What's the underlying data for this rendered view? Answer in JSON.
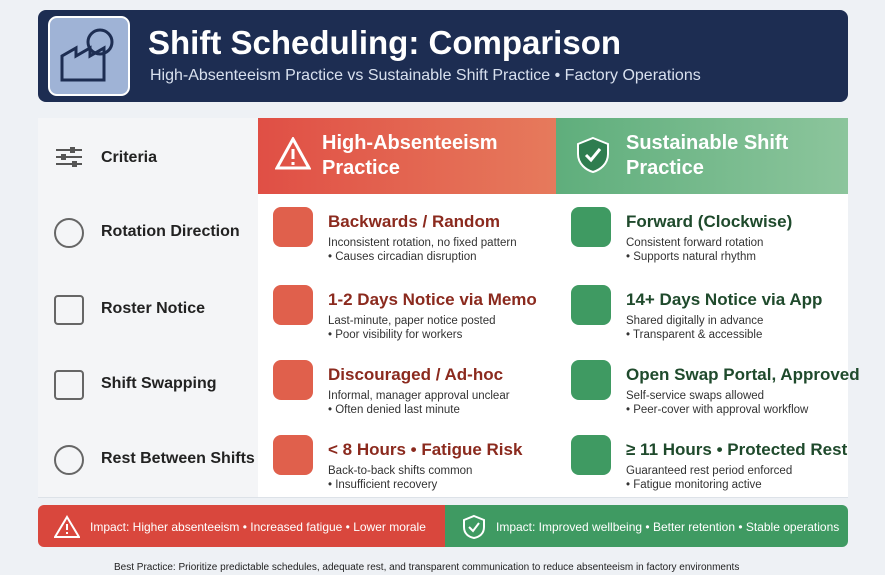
{
  "header": {
    "title": "Shift Scheduling: Comparison",
    "subtitle": "High-Absenteeism Practice vs Sustainable Shift Practice • Factory Operations"
  },
  "table": {
    "columns": [
      "Criteria",
      "High-Absenteeism Practice",
      "Sustainable Shift Practice"
    ],
    "rows": [
      {
        "criterion": "Rotation Direction",
        "bad": {
          "title": "Backwards / Random",
          "lines": [
            "Inconsistent rotation, no fixed pattern",
            "• Causes circadian disruption"
          ]
        },
        "good": {
          "title": "Forward (Clockwise)",
          "lines": [
            "Consistent forward rotation",
            "• Supports natural rhythm"
          ]
        }
      },
      {
        "criterion": "Roster Notice",
        "bad": {
          "title": "1-2 Days Notice via Memo",
          "lines": [
            "Last-minute, paper notice posted",
            "• Poor visibility for workers"
          ]
        },
        "good": {
          "title": "14+ Days Notice via App",
          "lines": [
            "Shared digitally in advance",
            "• Transparent & accessible"
          ]
        }
      },
      {
        "criterion": "Shift Swapping",
        "bad": {
          "title": "Discouraged / Ad-hoc",
          "lines": [
            "Informal, manager approval unclear",
            "• Often denied last minute"
          ]
        },
        "good": {
          "title": "Open Swap Portal, Approved",
          "lines": [
            "Self-service swaps allowed",
            "• Peer-cover with approval workflow"
          ]
        }
      },
      {
        "criterion": "Rest Between Shifts",
        "bad": {
          "title": "< 8 Hours • Fatigue Risk",
          "lines": [
            "Back-to-back shifts common",
            "• Insufficient recovery"
          ]
        },
        "good": {
          "title": "≥ 11 Hours • Protected Rest",
          "lines": [
            "Guaranteed rest period enforced",
            "• Fatigue monitoring active"
          ]
        }
      }
    ]
  },
  "footer": {
    "bad_impact": "Impact: Higher absenteeism • Increased fatigue • Lower morale",
    "good_impact": "Impact: Improved wellbeing • Better retention • Stable operations",
    "best_practice": "Best Practice: Prioritize predictable schedules, adequate rest, and transparent communication to reduce absenteeism in factory environments"
  }
}
